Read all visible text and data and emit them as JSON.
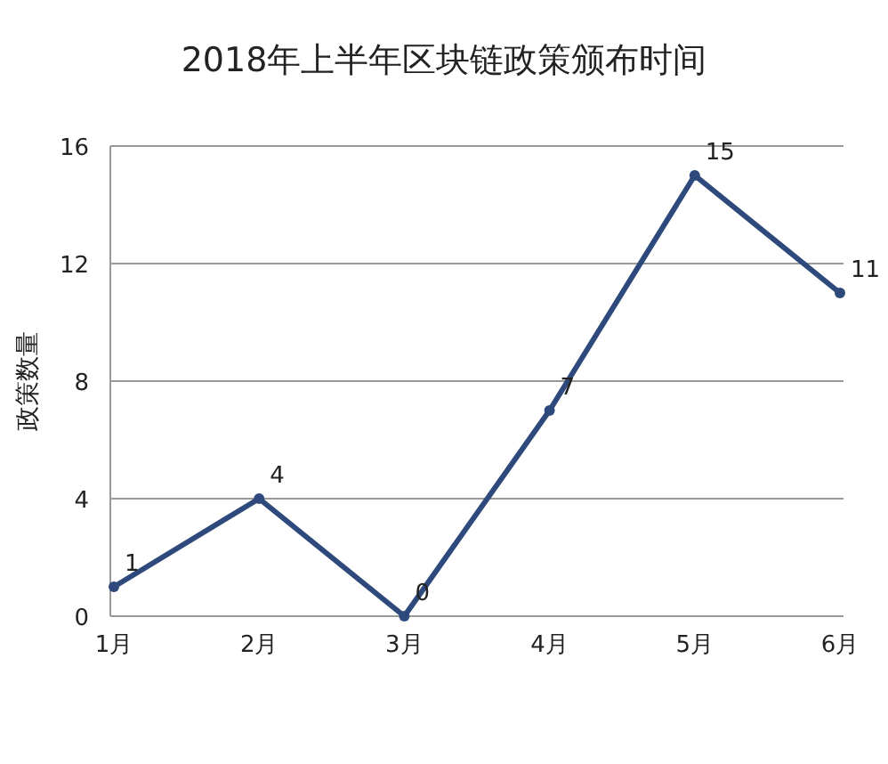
{
  "chart_data": {
    "type": "line",
    "title": "2018年上半年区块链政策颁布时间",
    "ylabel": "政策数量",
    "categories": [
      "1月",
      "2月",
      "3月",
      "4月",
      "5月",
      "6月"
    ],
    "series": [
      {
        "color": "#2e4a7d",
        "values": [
          1,
          4,
          0,
          7,
          15,
          11
        ]
      }
    ],
    "ylim": [
      0,
      16
    ],
    "yticks": [
      0,
      4,
      8,
      12,
      16
    ],
    "grid": "y",
    "marker": "circle",
    "data_labels": true
  }
}
